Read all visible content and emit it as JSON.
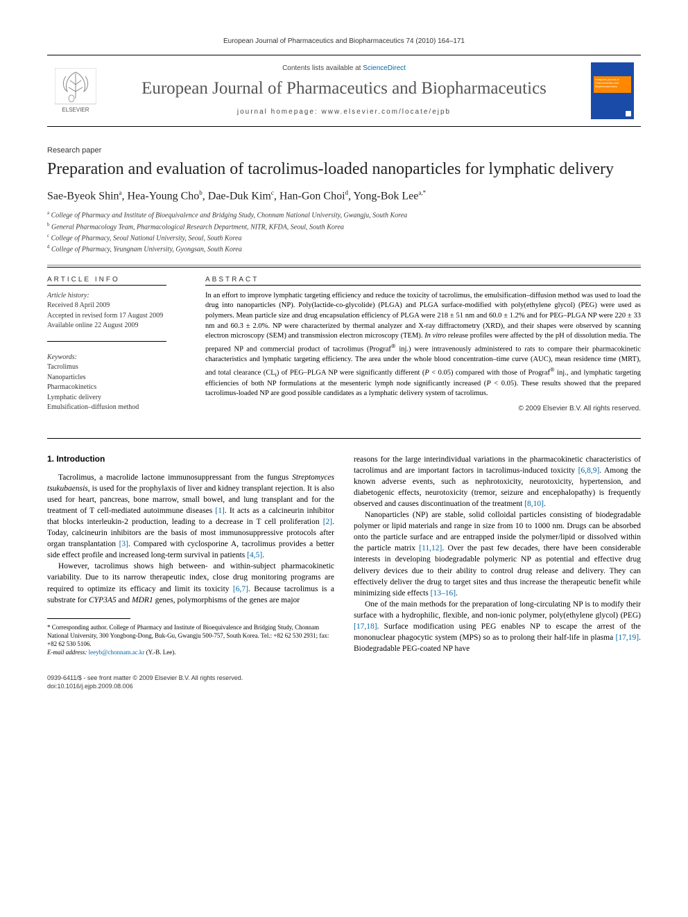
{
  "header": {
    "citation": "European Journal of Pharmaceutics and Biopharmaceutics 74 (2010) 164–171"
  },
  "masthead": {
    "contents_line_prefix": "Contents lists available at ",
    "contents_line_link": "ScienceDirect",
    "journal_name": "European Journal of Pharmaceutics and Biopharmaceutics",
    "homepage_prefix": "journal homepage: ",
    "homepage_url": "www.elsevier.com/locate/ejpb",
    "publisher_logo_alt": "ELSEVIER",
    "cover_title_line1": "european journal of",
    "cover_title_line2": "Pharmaceutics and",
    "cover_title_line3": "Biopharmaceutics"
  },
  "article": {
    "paper_type": "Research paper",
    "title": "Preparation and evaluation of tacrolimus-loaded nanoparticles for lymphatic delivery",
    "authors_html": "Sae-Byeok Shin<sup>a</sup>, Hea-Young Cho<sup>b</sup>, Dae-Duk Kim<sup>c</sup>, Han-Gon Choi<sup>d</sup>, Yong-Bok Lee<sup>a,*</sup>",
    "affiliations": [
      "a College of Pharmacy and Institute of Bioequivalence and Bridging Study, Chonnam National University, Gwangju, South Korea",
      "b General Pharmacology Team, Pharmacological Research Department, NITR, KFDA, Seoul, South Korea",
      "c College of Pharmacy, Seoul National University, Seoul, South Korea",
      "d College of Pharmacy, Yeungnam University, Gyongsan, South Korea"
    ]
  },
  "info": {
    "section_label": "ARTICLE INFO",
    "history_label": "Article history:",
    "received": "Received 8 April 2009",
    "accepted": "Accepted in revised form 17 August 2009",
    "online": "Available online 22 August 2009",
    "keywords_label": "Keywords:",
    "keywords": [
      "Tacrolimus",
      "Nanoparticles",
      "Pharmacokinetics",
      "Lymphatic delivery",
      "Emulsification–diffusion method"
    ]
  },
  "abstract": {
    "section_label": "ABSTRACT",
    "text": "In an effort to improve lymphatic targeting efficiency and reduce the toxicity of tacrolimus, the emulsification–diffusion method was used to load the drug into nanoparticles (NP). Poly(lactide-co-glycolide) (PLGA) and PLGA surface-modified with poly(ethylene glycol) (PEG) were used as polymers. Mean particle size and drug encapsulation efficiency of PLGA were 218 ± 51 nm and 60.0 ± 1.2% and for PEG–PLGA NP were 220 ± 33 nm and 60.3 ± 2.0%. NP were characterized by thermal analyzer and X-ray diffractometry (XRD), and their shapes were observed by scanning electron microscopy (SEM) and transmission electron microscopy (TEM). In vitro release profiles were affected by the pH of dissolution media. The prepared NP and commercial product of tacrolimus (Prograf® inj.) were intravenously administered to rats to compare their pharmacokinetic characteristics and lymphatic targeting efficiency. The area under the whole blood concentration–time curve (AUC), mean residence time (MRT), and total clearance (CLt) of PEG–PLGA NP were significantly different (P < 0.05) compared with those of Prograf® inj., and lymphatic targeting efficiencies of both NP formulations at the mesenteric lymph node significantly increased (P < 0.05). These results showed that the prepared tacrolimus-loaded NP are good possible candidates as a lymphatic delivery system of tacrolimus.",
    "copyright": "© 2009 Elsevier B.V. All rights reserved."
  },
  "body": {
    "intro_heading": "1. Introduction",
    "col1_p1": "Tacrolimus, a macrolide lactone immunosuppressant from the fungus Streptomyces tsukubaensis, is used for the prophylaxis of liver and kidney transplant rejection. It is also used for heart, pancreas, bone marrow, small bowel, and lung transplant and for the treatment of T cell-mediated autoimmune diseases [1]. It acts as a calcineurin inhibitor that blocks interleukin-2 production, leading to a decrease in T cell proliferation [2]. Today, calcineurin inhibitors are the basis of most immunosuppressive protocols after organ transplantation [3]. Compared with cyclosporine A, tacrolimus provides a better side effect profile and increased long-term survival in patients [4,5].",
    "col1_p2": "However, tacrolimus shows high between- and within-subject pharmacokinetic variability. Due to its narrow therapeutic index, close drug monitoring programs are required to optimize its efficacy and limit its toxicity [6,7]. Because tacrolimus is a substrate for CYP3A5 and MDR1 genes, polymorphisms of the genes are major",
    "col2_p1": "reasons for the large interindividual variations in the pharmacokinetic characteristics of tacrolimus and are important factors in tacrolimus-induced toxicity [6,8,9]. Among the known adverse events, such as nephrotoxicity, neurotoxicity, hypertension, and diabetogenic effects, neurotoxicity (tremor, seizure and encephalopathy) is frequently observed and causes discontinuation of the treatment [8,10].",
    "col2_p2": "Nanoparticles (NP) are stable, solid colloidal particles consisting of biodegradable polymer or lipid materials and range in size from 10 to 1000 nm. Drugs can be absorbed onto the particle surface and are entrapped inside the polymer/lipid or dissolved within the particle matrix [11,12]. Over the past few decades, there have been considerable interests in developing biodegradable polymeric NP as potential and effective drug delivery devices due to their ability to control drug release and delivery. They can effectively deliver the drug to target sites and thus increase the therapeutic benefit while minimizing side effects [13–16].",
    "col2_p3": "One of the main methods for the preparation of long-circulating NP is to modify their surface with a hydrophilic, flexible, and non-ionic polymer, poly(ethylene glycol) (PEG) [17,18]. Surface modification using PEG enables NP to escape the arrest of the mononuclear phagocytic system (MPS) so as to prolong their half-life in plasma [17,19]. Biodegradable PEG-coated NP have"
  },
  "footnote": {
    "corr_label": "* Corresponding author.",
    "corr_text": " College of Pharmacy and Institute of Bioequivalence and Bridging Study, Chonnam National University, 300 Yongbong-Dong, Buk-Gu, Gwangju 500-757, South Korea. Tel.: +82 62 530 2931; fax: +82 62 530 5106.",
    "email_label": "E-mail address:",
    "email": " leeyb@chonnam.ac.kr",
    "email_name": " (Y.-B. Lee)."
  },
  "footer": {
    "line1": "0939-6411/$ - see front matter © 2009 Elsevier B.V. All rights reserved.",
    "line2": "doi:10.1016/j.ejpb.2009.08.006"
  },
  "colors": {
    "link": "#0066aa",
    "text": "#000000",
    "gray_text": "#333333",
    "cover_bg": "#1a4ba8",
    "cover_bar": "#ff8800"
  }
}
